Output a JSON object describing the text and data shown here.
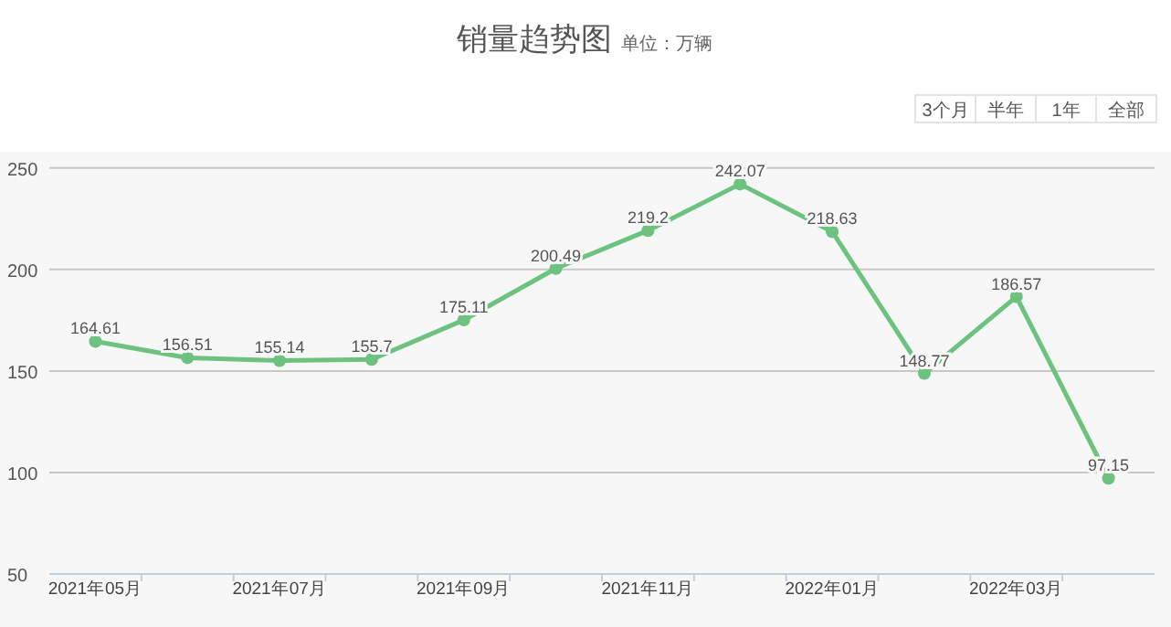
{
  "chart_data": {
    "type": "line",
    "title": "销量趋势图",
    "subtitle": "单位：万辆",
    "annotations": [
      "3个月",
      "半年",
      "1年",
      "全部"
    ],
    "categories": [
      "2021年05月",
      null,
      "2021年07月",
      null,
      "2021年09月",
      null,
      "2021年11月",
      null,
      "2022年01月",
      null,
      "2022年03月",
      null
    ],
    "series": [
      {
        "color": "#6cc27e",
        "values": [
          164.61,
          156.51,
          155.14,
          155.7,
          175.11,
          200.49,
          219.2,
          242.07,
          218.63,
          148.77,
          186.57,
          97.15
        ]
      }
    ],
    "ylim": [
      50,
      258
    ],
    "yticks": [
      50,
      100,
      150,
      200,
      250
    ],
    "grid": "y",
    "data_labels": true,
    "marker": "circle",
    "line_style": "solid"
  }
}
